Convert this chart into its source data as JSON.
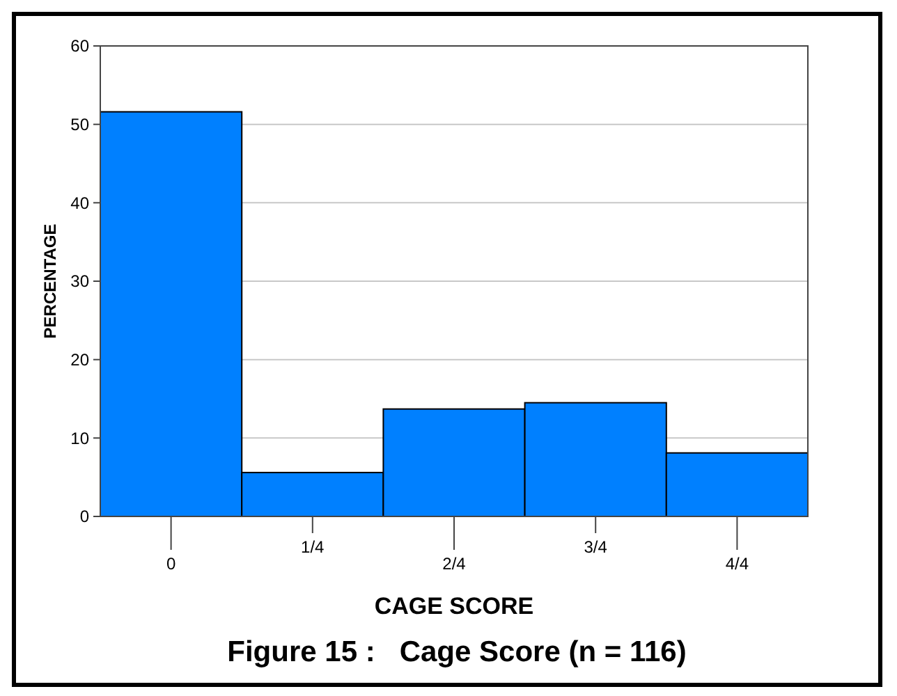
{
  "chart_data": {
    "type": "bar",
    "title": "Figure 15 :   Cage Score (n = 116)",
    "xlabel": "CAGE SCORE",
    "ylabel": "PERCENTAGE",
    "categories": [
      "0",
      "1/4",
      "2/4",
      "3/4",
      "4/4"
    ],
    "values": [
      51.6,
      5.6,
      13.7,
      14.5,
      8.1
    ],
    "color": "#0080ff",
    "ylim": [
      0,
      60
    ],
    "yticks": [
      0,
      10,
      20,
      30,
      40,
      50,
      60
    ],
    "grid": "y"
  }
}
